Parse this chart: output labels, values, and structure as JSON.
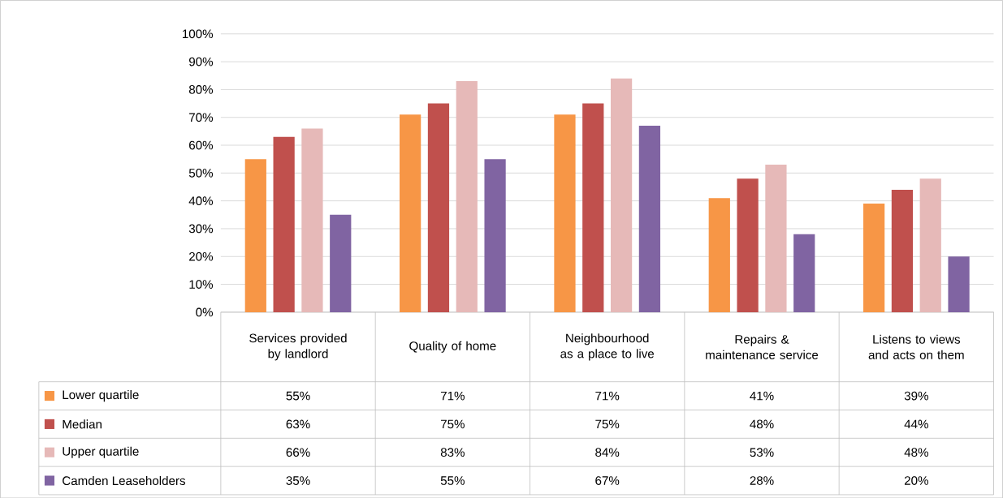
{
  "chart_data": {
    "type": "bar",
    "categories": [
      "Services provided by landlord",
      "Quality of home",
      "Neighbourhood as a place to live",
      "Repairs & maintenance service",
      "Listens to views and acts on them"
    ],
    "series": [
      {
        "name": "Lower quartile",
        "color": "#f79646",
        "values": [
          55,
          71,
          71,
          41,
          39
        ],
        "value_labels": [
          "55%",
          "71%",
          "71%",
          "41%",
          "39%"
        ]
      },
      {
        "name": "Median",
        "color": "#c0504d",
        "values": [
          63,
          75,
          75,
          48,
          44
        ],
        "value_labels": [
          "63%",
          "75%",
          "75%",
          "48%",
          "44%"
        ]
      },
      {
        "name": "Upper quartile",
        "color": "#e6b9b8",
        "values": [
          66,
          83,
          84,
          53,
          48
        ],
        "value_labels": [
          "66%",
          "83%",
          "84%",
          "53%",
          "48%"
        ]
      },
      {
        "name": "Camden Leaseholders",
        "color": "#8064a2",
        "values": [
          35,
          55,
          67,
          28,
          20
        ],
        "value_labels": [
          "35%",
          "55%",
          "67%",
          "28%",
          "20%"
        ]
      }
    ],
    "ylim": [
      0,
      100
    ],
    "yticks": [
      {
        "value": 0,
        "label": "0%"
      },
      {
        "value": 10,
        "label": "10%"
      },
      {
        "value": 20,
        "label": "20%"
      },
      {
        "value": 30,
        "label": "30%"
      },
      {
        "value": 40,
        "label": "40%"
      },
      {
        "value": 50,
        "label": "50%"
      },
      {
        "value": 60,
        "label": "60%"
      },
      {
        "value": 70,
        "label": "70%"
      },
      {
        "value": 80,
        "label": "80%"
      },
      {
        "value": 90,
        "label": "90%"
      },
      {
        "value": 100,
        "label": "100%"
      }
    ],
    "grid": "y",
    "legend": "bottom"
  }
}
